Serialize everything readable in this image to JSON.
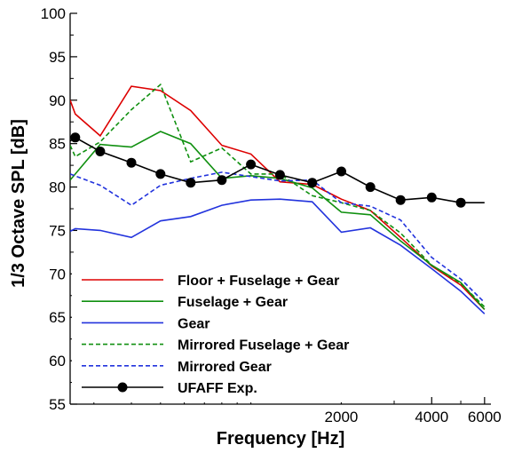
{
  "chart_data": {
    "type": "line",
    "title": "",
    "xlabel": "Frequency [Hz]",
    "ylabel": "1/3 Octave SPL [dB]",
    "x_scale": "log",
    "xlim": [
      250,
      6300
    ],
    "ylim": [
      55,
      100
    ],
    "x_ticks": [
      2000,
      4000,
      6000
    ],
    "x_tick_labels": [
      "2000",
      "4000",
      "6000"
    ],
    "y_ticks": [
      55,
      60,
      65,
      70,
      75,
      80,
      85,
      90,
      95,
      100
    ],
    "y_tick_labels": [
      "55",
      "60",
      "65",
      "70",
      "75",
      "80",
      "85",
      "90",
      "95",
      "100"
    ],
    "grid": false,
    "legend_position": "bottom-left",
    "series": [
      {
        "name": "Floor + Fuselage + Gear",
        "color": "#dd0000",
        "dash": "solid",
        "marker": "none",
        "x": [
          250,
          260,
          315,
          400,
          500,
          630,
          800,
          1000,
          1250,
          1600,
          2000,
          2500,
          3150,
          4000,
          5000,
          6000
        ],
        "y": [
          90,
          88.4,
          85.9,
          91.6,
          91.1,
          88.8,
          84.8,
          83.8,
          80.6,
          80.3,
          78.6,
          77.3,
          74.2,
          70.9,
          68.7,
          65.9
        ]
      },
      {
        "name": "Fuselage + Gear",
        "color": "#109010",
        "dash": "solid",
        "marker": "none",
        "x": [
          250,
          315,
          400,
          500,
          630,
          800,
          1000,
          1250,
          1600,
          2000,
          2500,
          3150,
          4000,
          5000,
          6000
        ],
        "y": [
          80.8,
          84.9,
          84.6,
          86.4,
          85,
          81,
          81.3,
          81,
          79.9,
          77.1,
          76.8,
          73.8,
          71,
          69,
          65.9
        ]
      },
      {
        "name": "Gear",
        "color": "#2233dd",
        "dash": "solid",
        "marker": "none",
        "x": [
          250,
          260,
          315,
          400,
          500,
          630,
          800,
          1000,
          1250,
          1600,
          2000,
          2500,
          3150,
          4000,
          5000,
          6000
        ],
        "y": [
          74.9,
          75.2,
          75,
          74.2,
          76.1,
          76.6,
          77.9,
          78.5,
          78.6,
          78.3,
          74.8,
          75.3,
          73.3,
          70.6,
          68,
          65.4
        ]
      },
      {
        "name": "Mirrored Fuselage + Gear",
        "color": "#109010",
        "dash": "dashed",
        "marker": "none",
        "x": [
          250,
          260,
          315,
          400,
          500,
          630,
          800,
          1000,
          1250,
          1600,
          2000,
          2500,
          3150,
          4000,
          5000,
          6000
        ],
        "y": [
          84.8,
          83.5,
          85.2,
          88.9,
          91.8,
          82.9,
          84.5,
          81.5,
          81.5,
          79,
          78.2,
          77.3,
          74.7,
          71,
          68.9,
          66.2
        ]
      },
      {
        "name": "Mirrored Gear",
        "color": "#2233dd",
        "dash": "dashed",
        "marker": "none",
        "x": [
          250,
          315,
          400,
          500,
          630,
          800,
          1000,
          1250,
          1600,
          2000,
          2500,
          3150,
          4000,
          5000,
          6000
        ],
        "y": [
          81.5,
          80.2,
          77.9,
          80.2,
          81,
          81.7,
          81.2,
          80.7,
          80.8,
          78.2,
          77.8,
          76.2,
          71.9,
          69.4,
          66.7
        ]
      },
      {
        "name": "UFAFF Exp.",
        "color": "#000000",
        "dash": "solid",
        "marker": "circle",
        "x": [
          250,
          260,
          315,
          400,
          500,
          630,
          800,
          1000,
          1250,
          1600,
          2000,
          2500,
          3150,
          4000,
          5000,
          6000
        ],
        "y": [
          85.3,
          85.7,
          84.1,
          82.8,
          81.5,
          80.5,
          80.8,
          82.6,
          81.4,
          80.5,
          81.8,
          80,
          78.5,
          78.8,
          78.2,
          78.2
        ],
        "marker_x": [
          260,
          315,
          400,
          500,
          630,
          800,
          1000,
          1250,
          1600,
          2000,
          2500,
          3150,
          4000,
          5000
        ],
        "marker_y": [
          85.7,
          84.1,
          82.8,
          81.5,
          80.5,
          80.8,
          82.6,
          81.4,
          80.5,
          81.8,
          80,
          78.5,
          78.8,
          78.2
        ]
      }
    ]
  }
}
